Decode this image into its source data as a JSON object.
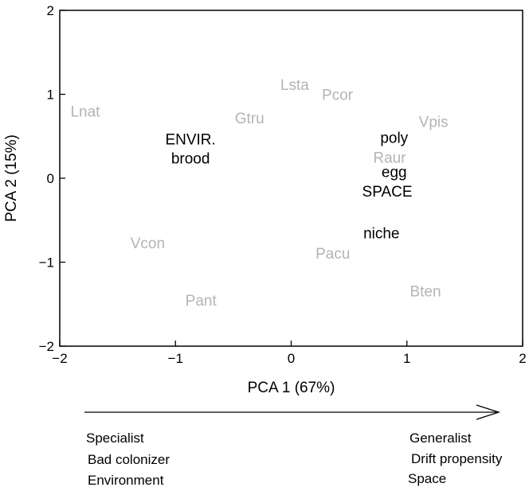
{
  "chart_data": {
    "type": "scatter",
    "xlabel": "PCA 1 (67%)",
    "ylabel": "PCA 2 (15%)",
    "xlim": [
      -2,
      2
    ],
    "ylim": [
      -2,
      2
    ],
    "xticks": [
      {
        "value": -2,
        "label": "−2"
      },
      {
        "value": -1,
        "label": "−1"
      },
      {
        "value": 0,
        "label": "0"
      },
      {
        "value": 1,
        "label": "1"
      },
      {
        "value": 2,
        "label": "2"
      }
    ],
    "yticks": [
      {
        "value": -2,
        "label": "−2"
      },
      {
        "value": -1,
        "label": "−1"
      },
      {
        "value": 0,
        "label": "0"
      },
      {
        "value": 1,
        "label": "1"
      },
      {
        "value": 2,
        "label": "2"
      }
    ],
    "grid": false,
    "series": [
      {
        "color": "#b4b4b4",
        "points": [
          {
            "label": "Lnat",
            "x": -1.78,
            "y": 0.8
          },
          {
            "label": "Lsta",
            "x": 0.03,
            "y": 1.12
          },
          {
            "label": "Pcor",
            "x": 0.4,
            "y": 1.0
          },
          {
            "label": "Gtru",
            "x": -0.36,
            "y": 0.72
          },
          {
            "label": "Vpis",
            "x": 1.23,
            "y": 0.68
          },
          {
            "label": "Raur",
            "x": 0.85,
            "y": 0.25
          },
          {
            "label": "Vcon",
            "x": -1.24,
            "y": -0.77
          },
          {
            "label": "Pacu",
            "x": 0.36,
            "y": -0.89
          },
          {
            "label": "Pant",
            "x": -0.78,
            "y": -1.45
          },
          {
            "label": "Bten",
            "x": 1.16,
            "y": -1.34
          }
        ]
      },
      {
        "color": "#000000",
        "points": [
          {
            "label": "ENVIR.",
            "x": -0.87,
            "y": 0.47
          },
          {
            "label": "brood",
            "x": -0.87,
            "y": 0.24
          },
          {
            "label": "poly",
            "x": 0.89,
            "y": 0.49
          },
          {
            "label": "egg",
            "x": 0.89,
            "y": 0.08
          },
          {
            "label": "SPACE",
            "x": 0.83,
            "y": -0.15
          },
          {
            "label": "niche",
            "x": 0.78,
            "y": -0.65
          }
        ]
      }
    ]
  },
  "annotation": {
    "left_lines": [
      "Specialist",
      "Bad colonizer",
      "Environment"
    ],
    "right_lines": [
      "Generalist",
      "Drift propensity",
      "Space"
    ]
  }
}
